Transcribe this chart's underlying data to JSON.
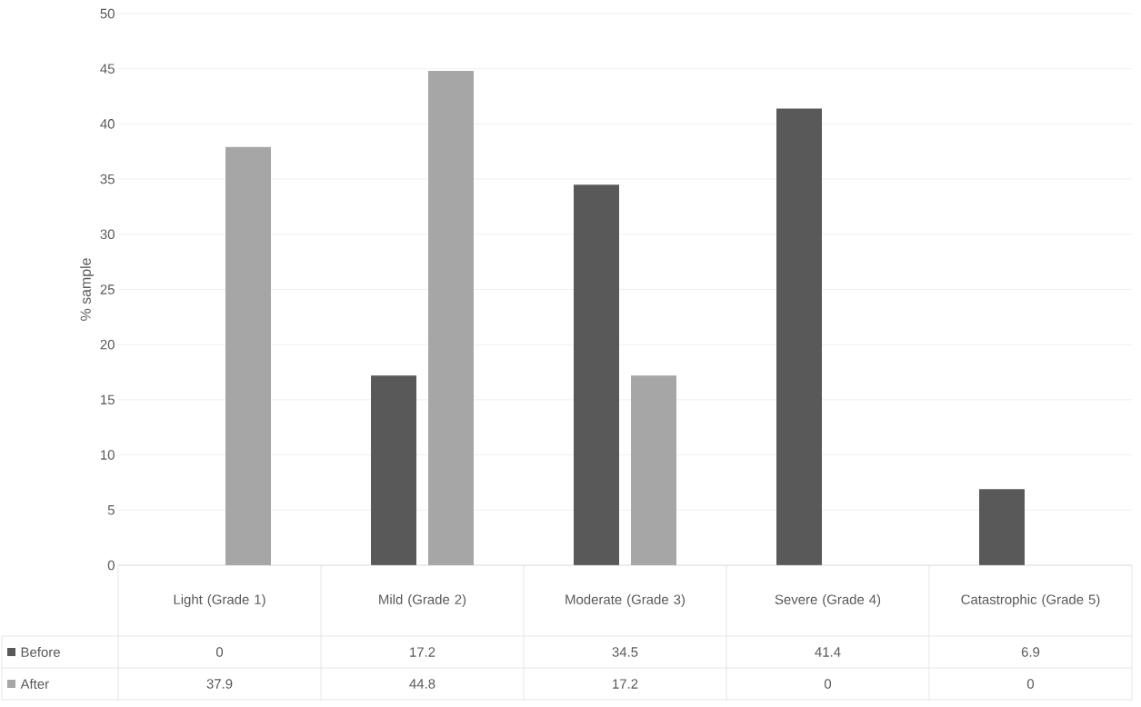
{
  "chart_data": {
    "type": "bar",
    "ylabel": "% sample",
    "categories": [
      "Light (Grade 1)",
      "Mild (Grade 2)",
      "Moderate (Grade 3)",
      "Severe (Grade 4)",
      "Catastrophic (Grade 5)"
    ],
    "series": [
      {
        "name": "Before",
        "color": "#595959",
        "values": [
          0,
          17.2,
          34.5,
          41.4,
          6.9
        ]
      },
      {
        "name": "After",
        "color": "#a6a6a6",
        "values": [
          37.9,
          44.8,
          17.2,
          0,
          0
        ]
      }
    ],
    "ylim": [
      0,
      50
    ],
    "yticks": [
      0,
      5,
      10,
      15,
      20,
      25,
      30,
      35,
      40,
      45,
      50
    ],
    "grid": "y",
    "legend": "bottom left",
    "data_labels": true
  }
}
